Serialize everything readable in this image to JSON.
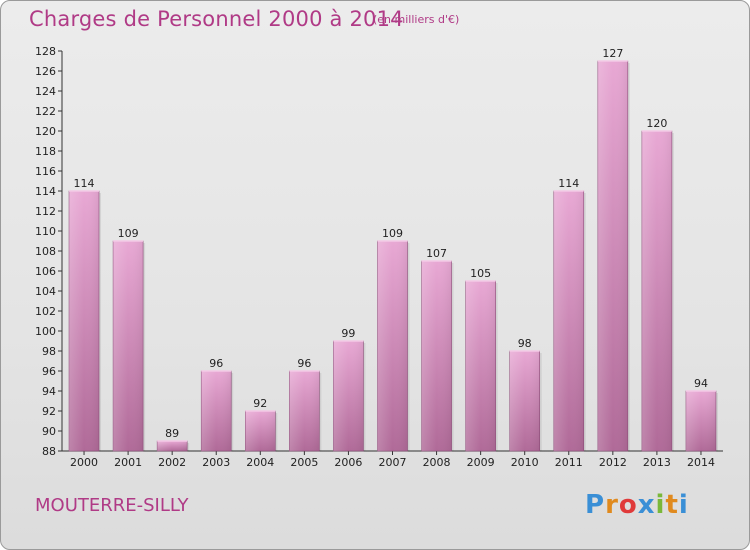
{
  "title": "Charges de Personnel 2000 à 2014",
  "subtitle": "(en milliers d'€)",
  "commune": "MOUTERRE-SILLY",
  "logo": {
    "letters": [
      "P",
      "r",
      "o",
      "x",
      "i",
      "t",
      "i"
    ],
    "colors": [
      "#3a8fd6",
      "#e08a1e",
      "#e03a3a",
      "#3a8fd6",
      "#7ab83a",
      "#e08a1e",
      "#3a8fd6"
    ]
  },
  "colors": {
    "bar_top": "#e8a8d4",
    "bar_bottom": "#b06a98",
    "accent": "#b03a86"
  },
  "chart_data": {
    "type": "bar",
    "title": "Charges de Personnel 2000 à 2014",
    "categories": [
      "2000",
      "2001",
      "2002",
      "2003",
      "2004",
      "2005",
      "2006",
      "2007",
      "2008",
      "2009",
      "2010",
      "2011",
      "2012",
      "2013",
      "2014"
    ],
    "values": [
      114,
      109,
      89,
      96,
      92,
      96,
      99,
      109,
      107,
      105,
      98,
      114,
      127,
      120,
      94
    ],
    "ylim": [
      88,
      128
    ],
    "yticks": [
      88,
      90,
      92,
      94,
      96,
      98,
      100,
      102,
      104,
      106,
      108,
      110,
      112,
      114,
      116,
      118,
      120,
      122,
      124,
      126,
      128
    ],
    "grid": false,
    "data_labels": true
  }
}
